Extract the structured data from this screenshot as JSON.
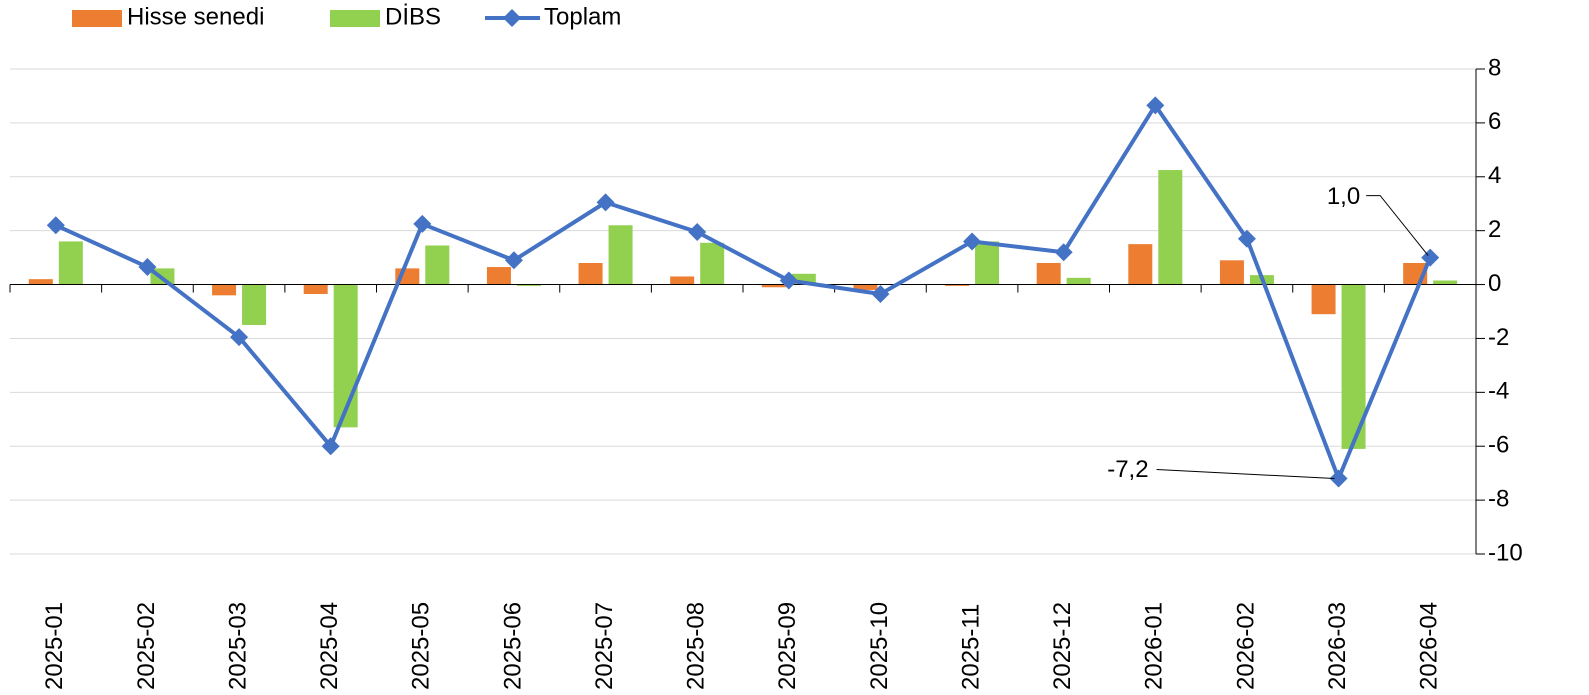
{
  "chart_data": {
    "type": "bar_line",
    "categories": [
      "2025-01",
      "2025-02",
      "2025-03",
      "2025-04",
      "2025-05",
      "2025-06",
      "2025-07",
      "2025-08",
      "2025-09",
      "2025-10",
      "2025-11",
      "2025-12",
      "2026-01",
      "2026-02",
      "2026-03",
      "2026-04"
    ],
    "series": [
      {
        "name": "Hisse senedi",
        "type": "bar",
        "color": "#ed7d31",
        "values": [
          0.2,
          0.0,
          -0.4,
          -0.35,
          0.6,
          0.65,
          0.8,
          0.3,
          -0.1,
          -0.2,
          -0.05,
          0.8,
          1.5,
          0.9,
          -1.1,
          0.8
        ]
      },
      {
        "name": "DİBS",
        "type": "bar",
        "color": "#92d050",
        "values": [
          1.6,
          0.6,
          -1.5,
          -5.3,
          1.45,
          -0.05,
          2.2,
          1.55,
          0.4,
          0.0,
          1.6,
          0.25,
          4.25,
          0.35,
          -6.1,
          0.15
        ]
      },
      {
        "name": "Toplam",
        "type": "line",
        "color": "#4472c4",
        "values": [
          2.2,
          0.65,
          -1.95,
          -6.0,
          2.25,
          0.9,
          3.05,
          1.95,
          0.15,
          -0.35,
          1.6,
          1.2,
          6.65,
          1.7,
          -7.2,
          1.0
        ],
        "value_labels": [
          null,
          null,
          null,
          null,
          null,
          null,
          null,
          null,
          null,
          null,
          null,
          null,
          null,
          null,
          "-7,2",
          "1,0"
        ]
      }
    ],
    "ylim": [
      -10,
      8
    ],
    "yticks": [
      -10,
      -8,
      -6,
      -4,
      -2,
      0,
      2,
      4,
      6,
      8
    ],
    "grid": true,
    "legend": "top-left"
  }
}
